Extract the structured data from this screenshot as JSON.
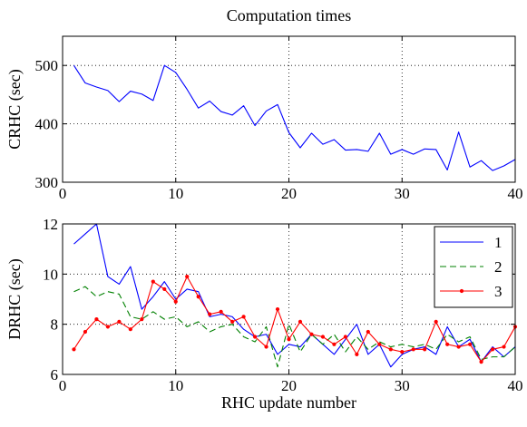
{
  "chart_data": [
    {
      "type": "line",
      "title": "Computation times",
      "xlabel": "",
      "ylabel": "CRHC (sec)",
      "xlim": [
        0,
        40
      ],
      "ylim": [
        300,
        550
      ],
      "xticks": [
        0,
        10,
        20,
        30,
        40
      ],
      "yticks": [
        300,
        400,
        500
      ],
      "grid": true,
      "legend": "none",
      "series": [
        {
          "color": "#0000ff",
          "style": "solid",
          "x": [
            1,
            2,
            3,
            4,
            5,
            6,
            7,
            8,
            9,
            10,
            11,
            12,
            13,
            14,
            15,
            16,
            17,
            18,
            19,
            20,
            21,
            22,
            23,
            24,
            25,
            26,
            27,
            28,
            29,
            30,
            31,
            32,
            33,
            34,
            35,
            36,
            37,
            38,
            39,
            40
          ],
          "y": [
            500,
            470,
            463,
            457,
            438,
            456,
            451,
            440,
            500,
            488,
            459,
            427,
            439,
            421,
            415,
            431,
            397,
            422,
            433,
            385,
            359,
            384,
            365,
            373,
            355,
            356,
            353,
            384,
            348,
            356,
            348,
            357,
            356,
            321,
            386,
            326,
            337,
            320,
            328,
            339
          ]
        }
      ]
    },
    {
      "type": "line",
      "title": "",
      "xlabel": "RHC update number",
      "ylabel": "DRHC (sec)",
      "xlim": [
        0,
        40
      ],
      "ylim": [
        6,
        12
      ],
      "xticks": [
        0,
        10,
        20,
        30,
        40
      ],
      "yticks": [
        6,
        8,
        10,
        12
      ],
      "grid": true,
      "legend": "top-right",
      "series": [
        {
          "name": "1",
          "color": "#0000ff",
          "style": "solid",
          "marker": "none",
          "x": [
            1,
            2,
            3,
            4,
            5,
            6,
            7,
            8,
            9,
            10,
            11,
            12,
            13,
            14,
            15,
            16,
            17,
            18,
            19,
            20,
            21,
            22,
            23,
            24,
            25,
            26,
            27,
            28,
            29,
            30,
            31,
            32,
            33,
            34,
            35,
            36,
            37,
            38,
            39,
            40
          ],
          "y": [
            11.2,
            11.6,
            12.0,
            9.9,
            9.6,
            10.3,
            8.6,
            9.1,
            9.7,
            9.0,
            9.4,
            9.3,
            8.3,
            8.4,
            8.3,
            7.8,
            7.5,
            7.6,
            6.8,
            7.2,
            7.1,
            7.6,
            7.2,
            6.8,
            7.4,
            8.0,
            6.8,
            7.2,
            6.3,
            6.8,
            7.0,
            7.1,
            6.8,
            7.9,
            7.1,
            7.4,
            6.5,
            7.1,
            6.7,
            7.1
          ]
        },
        {
          "name": "2",
          "color": "#008000",
          "style": "dashed",
          "marker": "none",
          "x": [
            1,
            2,
            3,
            4,
            5,
            6,
            7,
            8,
            9,
            10,
            11,
            12,
            13,
            14,
            15,
            16,
            17,
            18,
            19,
            20,
            21,
            22,
            23,
            24,
            25,
            26,
            27,
            28,
            29,
            30,
            31,
            32,
            33,
            34,
            35,
            36,
            37,
            38,
            39,
            40
          ],
          "y": [
            9.3,
            9.5,
            9.1,
            9.3,
            9.2,
            8.3,
            8.2,
            8.5,
            8.2,
            8.3,
            7.9,
            8.1,
            7.7,
            7.9,
            8.0,
            7.5,
            7.3,
            7.9,
            6.3,
            8.0,
            6.9,
            7.6,
            7.2,
            7.6,
            6.9,
            7.5,
            7.0,
            7.3,
            7.1,
            7.2,
            7.1,
            7.2,
            7.0,
            7.6,
            7.3,
            7.5,
            6.6,
            6.7,
            6.7,
            7.1
          ]
        },
        {
          "name": "3",
          "color": "#ff0000",
          "style": "solid",
          "marker": "dot",
          "x": [
            1,
            2,
            3,
            4,
            5,
            6,
            7,
            8,
            9,
            10,
            11,
            12,
            13,
            14,
            15,
            16,
            17,
            18,
            19,
            20,
            21,
            22,
            23,
            24,
            25,
            26,
            27,
            28,
            29,
            30,
            31,
            32,
            33,
            34,
            35,
            36,
            37,
            38,
            39,
            40
          ],
          "y": [
            7.0,
            7.7,
            8.2,
            7.9,
            8.1,
            7.8,
            8.2,
            9.7,
            9.4,
            8.9,
            9.9,
            9.1,
            8.4,
            8.5,
            8.1,
            8.3,
            7.5,
            7.1,
            8.6,
            7.4,
            8.1,
            7.6,
            7.5,
            7.2,
            7.5,
            6.8,
            7.7,
            7.2,
            7.0,
            6.9,
            7.0,
            7.0,
            8.1,
            7.2,
            7.1,
            7.2,
            6.5,
            7.0,
            7.1,
            7.9
          ]
        }
      ]
    }
  ]
}
